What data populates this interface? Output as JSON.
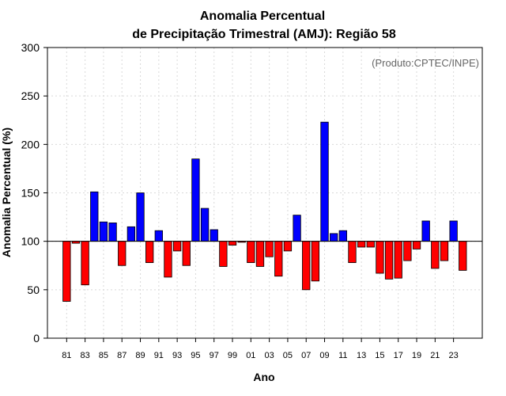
{
  "chart_data": {
    "type": "bar",
    "title": "Anomalia Percentual",
    "subtitle": "de Precipitação Trimestral (AMJ): Região 58",
    "xlabel": "Ano",
    "ylabel": "Anomalia Percentual (%)",
    "credit": "(Produto:CPTEC/INPE)",
    "ylim": [
      0,
      300
    ],
    "yticks": [
      "0",
      "50",
      "100",
      "150",
      "200",
      "250",
      "300"
    ],
    "baseline": 100,
    "grid": true,
    "colors": {
      "above": "#0000ff",
      "below": "#ff0000"
    },
    "categories": [
      "81",
      "82",
      "83",
      "84",
      "85",
      "86",
      "87",
      "88",
      "89",
      "90",
      "91",
      "92",
      "93",
      "94",
      "95",
      "96",
      "97",
      "98",
      "99",
      "00",
      "01",
      "02",
      "03",
      "04",
      "05",
      "06",
      "07",
      "08",
      "09",
      "10",
      "11",
      "12",
      "13",
      "14",
      "15",
      "16",
      "17",
      "18",
      "19",
      "20",
      "21",
      "22",
      "23",
      "24"
    ],
    "xtick_labels": [
      "81",
      "83",
      "85",
      "87",
      "89",
      "91",
      "93",
      "95",
      "97",
      "99",
      "01",
      "03",
      "05",
      "07",
      "09",
      "11",
      "13",
      "15",
      "17",
      "19",
      "21",
      "23"
    ],
    "values": [
      38,
      98,
      55,
      151,
      120,
      119,
      75,
      115,
      150,
      78,
      111,
      63,
      90,
      75,
      185,
      134,
      112,
      74,
      96,
      99,
      78,
      74,
      84,
      64,
      90,
      127,
      50,
      59,
      223,
      108,
      111,
      78,
      94,
      94,
      67,
      61,
      62,
      80,
      92,
      121,
      72,
      80,
      121,
      70
    ]
  }
}
